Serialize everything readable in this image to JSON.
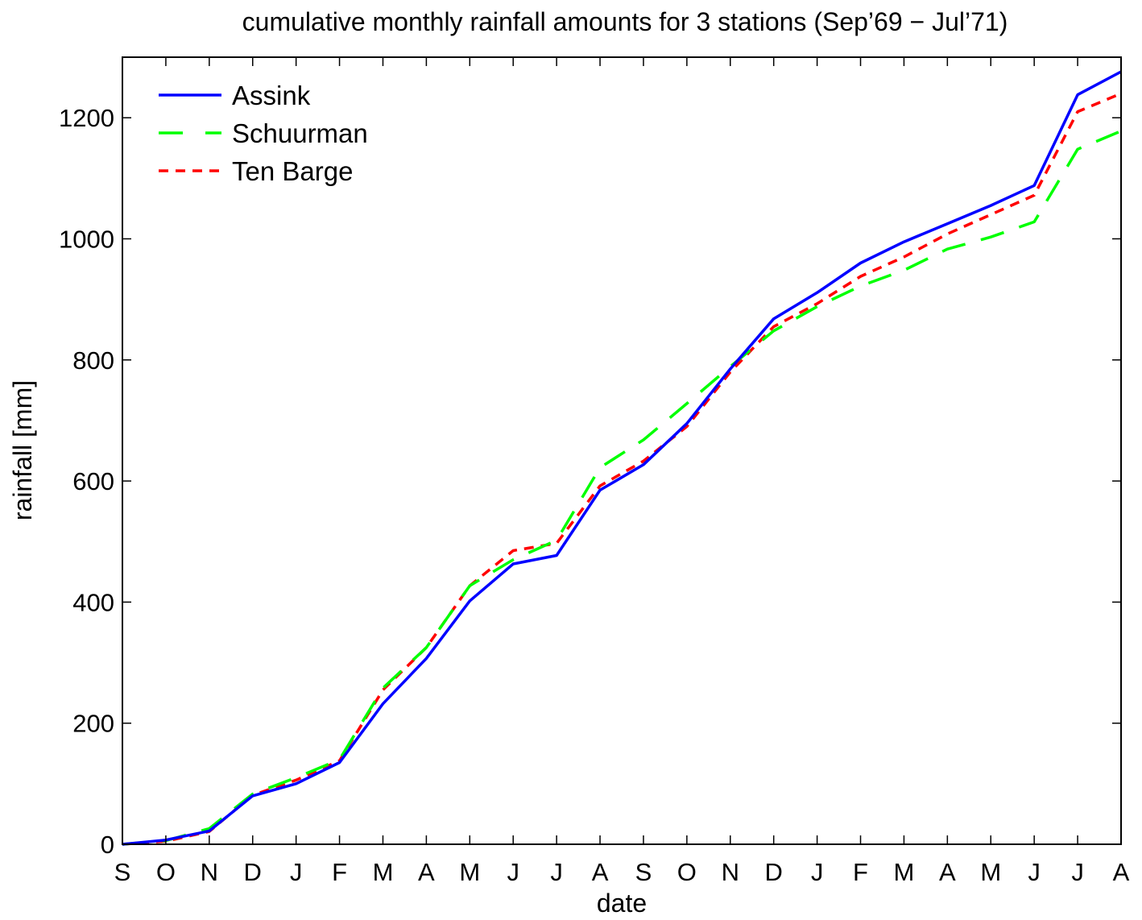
{
  "chart_data": {
    "type": "line",
    "title": "cumulative monthly rainfall amounts for 3 stations (Sep’69 − Jul’71)",
    "xlabel": "date",
    "ylabel": "rainfall [mm]",
    "categories": [
      "S",
      "O",
      "N",
      "D",
      "J",
      "F",
      "M",
      "A",
      "M",
      "J",
      "J",
      "A",
      "S",
      "O",
      "N",
      "D",
      "J",
      "F",
      "M",
      "A",
      "M",
      "J",
      "J",
      "A"
    ],
    "ylim": [
      0,
      1300
    ],
    "yticks": [
      0,
      200,
      400,
      600,
      800,
      1000,
      1200
    ],
    "grid": false,
    "legend_position": "top-left",
    "series": [
      {
        "name": "Assink",
        "color": "#0000ff",
        "style": "solid",
        "values": [
          0,
          7,
          22,
          80,
          100,
          135,
          232,
          307,
          402,
          463,
          477,
          585,
          627,
          695,
          785,
          868,
          911,
          960,
          995,
          1025,
          1055,
          1088,
          1238,
          1276
        ]
      },
      {
        "name": "Schuurman",
        "color": "#00ff00",
        "style": "dashed",
        "values": [
          0,
          6,
          26,
          83,
          110,
          140,
          258,
          325,
          427,
          470,
          502,
          622,
          668,
          728,
          789,
          848,
          888,
          922,
          948,
          983,
          1003,
          1028,
          1148,
          1178
        ]
      },
      {
        "name": "Ten Barge",
        "color": "#ff0000",
        "style": "dotted",
        "values": [
          0,
          5,
          21,
          81,
          106,
          138,
          255,
          325,
          427,
          485,
          497,
          592,
          633,
          690,
          780,
          855,
          893,
          938,
          970,
          1008,
          1040,
          1072,
          1210,
          1240
        ]
      }
    ]
  }
}
